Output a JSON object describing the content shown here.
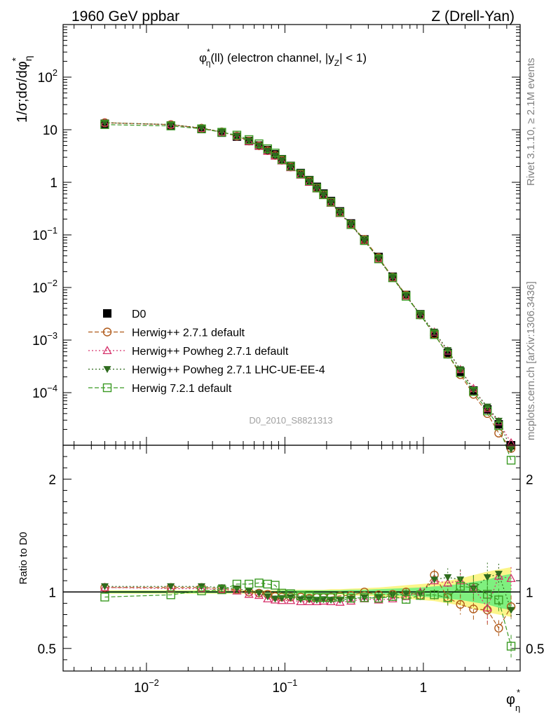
{
  "header": {
    "left": "1960 GeV ppbar",
    "right": "Z (Drell-Yan)"
  },
  "side_labels": {
    "rivet": "Rivet 3.1.10, ≥ 2.1M events",
    "mcplots": "mcplots.cern.ch [arXiv:1306.3436]"
  },
  "chart_data": [
    {
      "type": "scatter",
      "title": "φ*η(ll) (electron channel, |yZ| < 1)",
      "title_parts": {
        "phi": "φ",
        "star": "*",
        "eta": "η",
        "rest1": "(ll) (electron channel, |y",
        "sub": "Z",
        "rest2": "| < 1)"
      },
      "ylabel": "1/σ;dσ/dφ*η",
      "ylabel_parts": {
        "main": "1/σ;dσ/dφ",
        "sub": "η",
        "star": "*"
      },
      "xscale": "log",
      "yscale": "log",
      "xlim": [
        0.0025,
        5
      ],
      "ylim": [
        1e-05,
        1000
      ],
      "ytick_labels": [
        {
          "v": 100,
          "m": "10",
          "e": "2"
        },
        {
          "v": 10,
          "m": "10",
          "e": ""
        },
        {
          "v": 1,
          "m": "1",
          "e": ""
        },
        {
          "v": 0.1,
          "m": "10",
          "e": "−1"
        },
        {
          "v": 0.01,
          "m": "10",
          "e": "−2"
        },
        {
          "v": 0.001,
          "m": "10",
          "e": "−3"
        },
        {
          "v": 0.0001,
          "m": "10",
          "e": "−4"
        }
      ],
      "watermark": "D0_2010_S8821313",
      "legend_position": "bottom-left",
      "x": [
        0.005,
        0.015,
        0.025,
        0.035,
        0.045,
        0.055,
        0.065,
        0.075,
        0.085,
        0.095,
        0.11,
        0.13,
        0.15,
        0.17,
        0.19,
        0.215,
        0.25,
        0.3,
        0.375,
        0.475,
        0.6,
        0.75,
        0.95,
        1.2,
        1.5,
        1.85,
        2.3,
        2.9,
        3.5,
        4.3
      ],
      "series": [
        {
          "name": "D0",
          "color": "#000000",
          "marker": "square-filled",
          "line": "none",
          "values": [
            13.0,
            12.0,
            10.3,
            8.8,
            7.4,
            6.1,
            5.0,
            4.1,
            3.4,
            2.75,
            2.05,
            1.5,
            1.1,
            0.82,
            0.61,
            0.44,
            0.28,
            0.165,
            0.082,
            0.038,
            0.016,
            0.0072,
            0.0031,
            0.0013,
            0.00057,
            0.00025,
            0.00011,
            4.8e-05,
            2.5e-05,
            1e-05
          ]
        },
        {
          "name": "Herwig++ 2.7.1 default",
          "color": "#b05a1a",
          "marker": "circle-open",
          "line": "dashed",
          "values": [
            13.6,
            12.5,
            10.7,
            9.1,
            7.55,
            6.1,
            4.95,
            4.0,
            3.25,
            2.63,
            1.96,
            1.43,
            1.04,
            0.78,
            0.58,
            0.42,
            0.27,
            0.16,
            0.082,
            0.037,
            0.0157,
            0.0072,
            0.003,
            0.0013,
            0.00054,
            0.00022,
            9.3e-05,
            4e-05,
            1.7e-05,
            8.7e-06
          ]
        },
        {
          "name": "Herwig++ Powheg 2.7.1 default",
          "color": "#d6336c",
          "marker": "triangle-open",
          "line": "dotted",
          "values": [
            13.5,
            12.4,
            10.6,
            9.0,
            7.5,
            6.0,
            4.9,
            3.9,
            3.15,
            2.55,
            1.9,
            1.37,
            1.0,
            0.75,
            0.56,
            0.4,
            0.255,
            0.152,
            0.077,
            0.035,
            0.015,
            0.0069,
            0.003,
            0.00142,
            0.00062,
            0.000275,
            0.00012,
            5e-05,
            2.8e-05,
            1.11e-05
          ]
        },
        {
          "name": "Herwig++ Powheg 2.7.1 LHC-UE-EE-4",
          "color": "#2e6b1e",
          "marker": "triangle-down-filled",
          "line": "dotted",
          "values": [
            13.6,
            12.6,
            10.8,
            9.1,
            7.6,
            6.15,
            4.95,
            3.95,
            3.2,
            2.6,
            1.95,
            1.4,
            1.03,
            0.76,
            0.57,
            0.41,
            0.26,
            0.155,
            0.078,
            0.036,
            0.0155,
            0.0071,
            0.00305,
            0.00144,
            0.00064,
            0.000277,
            0.000113,
            5.4e-05,
            2.9e-05,
            8.4e-06
          ]
        },
        {
          "name": "Herwig 7.2.1 default",
          "color": "#3a9a23",
          "marker": "square-open",
          "line": "dashed",
          "values": [
            12.5,
            11.8,
            10.4,
            8.95,
            7.9,
            6.5,
            5.4,
            4.35,
            3.6,
            2.7,
            2.02,
            1.45,
            1.07,
            0.78,
            0.58,
            0.42,
            0.268,
            0.157,
            0.078,
            0.035,
            0.0153,
            0.0068,
            0.00302,
            0.00127,
            0.00054,
            0.00024,
            0.000105,
            4.5e-05,
            2.35e-05,
            5.2e-06
          ]
        }
      ]
    },
    {
      "type": "scatter",
      "ylabel": "Ratio to D0",
      "xlabel": "φ*η",
      "xlabel_parts": {
        "main": "φ",
        "star": "*",
        "sub": "η"
      },
      "xscale": "log",
      "xlim": [
        0.0025,
        5
      ],
      "ylim": [
        0.3,
        2.3
      ],
      "ytick_labels": [
        "0.5",
        "1",
        "2"
      ],
      "xtick_labels": [
        {
          "v": 0.01,
          "m": "10",
          "e": "−2"
        },
        {
          "v": 0.1,
          "m": "10",
          "e": "−1"
        },
        {
          "v": 1,
          "m": "1",
          "e": ""
        }
      ],
      "band_colors": {
        "inner": "#7ff07f",
        "outer": "#fbf58a"
      },
      "band_inner": [
        0.01,
        0.01,
        0.01,
        0.01,
        0.01,
        0.01,
        0.01,
        0.01,
        0.01,
        0.015,
        0.015,
        0.015,
        0.015,
        0.015,
        0.015,
        0.015,
        0.015,
        0.02,
        0.02,
        0.025,
        0.03,
        0.035,
        0.04,
        0.05,
        0.06,
        0.07,
        0.09,
        0.11,
        0.14,
        0.16
      ],
      "band_outer": [
        0.015,
        0.015,
        0.015,
        0.015,
        0.015,
        0.015,
        0.015,
        0.015,
        0.015,
        0.02,
        0.02,
        0.02,
        0.02,
        0.02,
        0.02,
        0.025,
        0.025,
        0.03,
        0.035,
        0.04,
        0.05,
        0.06,
        0.07,
        0.08,
        0.1,
        0.12,
        0.15,
        0.18,
        0.2,
        0.22
      ],
      "series": [
        {
          "name": "Herwig++ 2.7.1 default",
          "color": "#b05a1a",
          "values": [
            1.04,
            1.04,
            1.04,
            1.03,
            1.02,
            1.0,
            0.99,
            0.98,
            0.96,
            0.955,
            0.955,
            0.955,
            0.945,
            0.95,
            0.95,
            0.955,
            0.965,
            0.97,
            1.0,
            0.975,
            0.98,
            1.0,
            0.97,
            1.15,
            0.95,
            0.89,
            0.85,
            0.84,
            0.68,
            0.87
          ],
          "errors": [
            0.01,
            0.01,
            0.01,
            0.01,
            0.01,
            0.01,
            0.01,
            0.01,
            0.01,
            0.01,
            0.01,
            0.01,
            0.01,
            0.01,
            0.01,
            0.01,
            0.015,
            0.015,
            0.015,
            0.02,
            0.025,
            0.03,
            0.04,
            0.05,
            0.07,
            0.09,
            0.11,
            0.13,
            0.07,
            0.1
          ]
        },
        {
          "name": "Herwig++ Powheg 2.7.1 default",
          "color": "#d6336c",
          "values": [
            1.04,
            1.03,
            1.03,
            1.02,
            1.01,
            0.98,
            0.97,
            0.94,
            0.93,
            0.925,
            0.925,
            0.915,
            0.915,
            0.915,
            0.92,
            0.915,
            0.91,
            0.92,
            0.94,
            0.93,
            0.94,
            0.96,
            1.0,
            1.1,
            1.08,
            1.1,
            1.04,
            0.86,
            1.14,
            1.12
          ],
          "errors": [
            0.01,
            0.01,
            0.01,
            0.01,
            0.01,
            0.01,
            0.01,
            0.01,
            0.01,
            0.01,
            0.01,
            0.01,
            0.01,
            0.01,
            0.01,
            0.01,
            0.015,
            0.015,
            0.015,
            0.02,
            0.025,
            0.03,
            0.04,
            0.05,
            0.07,
            0.09,
            0.11,
            0.13,
            0.08,
            0.1
          ]
        },
        {
          "name": "Herwig++ Powheg 2.7.1 LHC-UE-EE-4",
          "color": "#2e6b1e",
          "values": [
            1.05,
            1.05,
            1.05,
            1.04,
            1.03,
            1.01,
            0.99,
            0.96,
            0.94,
            0.945,
            0.95,
            0.935,
            0.935,
            0.93,
            0.935,
            0.93,
            0.93,
            0.94,
            0.95,
            0.95,
            0.97,
            0.985,
            0.985,
            1.11,
            1.13,
            1.11,
            1.03,
            1.13,
            1.16,
            0.84
          ],
          "errors": [
            0.01,
            0.01,
            0.01,
            0.01,
            0.01,
            0.01,
            0.01,
            0.01,
            0.01,
            0.01,
            0.01,
            0.01,
            0.01,
            0.01,
            0.01,
            0.01,
            0.015,
            0.015,
            0.015,
            0.02,
            0.025,
            0.03,
            0.04,
            0.05,
            0.08,
            0.09,
            0.11,
            0.13,
            0.09,
            0.08
          ]
        },
        {
          "name": "Herwig 7.2.1 default",
          "color": "#3a9a23",
          "values": [
            0.955,
            0.975,
            1.01,
            1.02,
            1.07,
            1.07,
            1.08,
            1.07,
            1.06,
            0.99,
            0.985,
            0.965,
            0.97,
            0.95,
            0.95,
            0.95,
            0.955,
            0.945,
            0.95,
            0.945,
            0.96,
            0.935,
            0.97,
            0.975,
            0.95,
            1.05,
            1.04,
            0.98,
            0.93,
            0.52
          ],
          "errors": [
            0.01,
            0.01,
            0.01,
            0.01,
            0.01,
            0.01,
            0.01,
            0.01,
            0.01,
            0.01,
            0.01,
            0.01,
            0.01,
            0.01,
            0.01,
            0.01,
            0.015,
            0.015,
            0.015,
            0.02,
            0.025,
            0.03,
            0.04,
            0.05,
            0.08,
            0.09,
            0.11,
            0.13,
            0.1,
            0.1
          ]
        }
      ]
    }
  ]
}
